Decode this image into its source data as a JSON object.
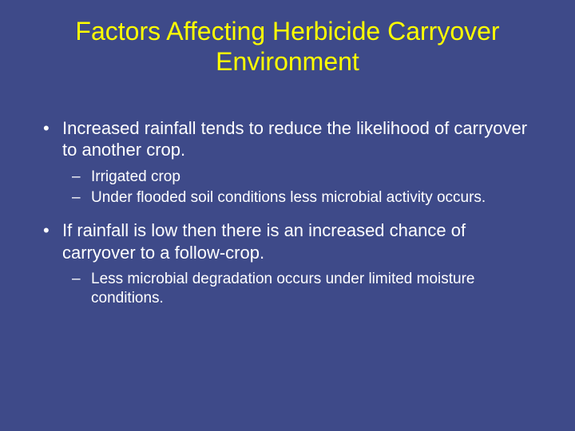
{
  "colors": {
    "background": "#3e4a89",
    "title": "#ffff00",
    "body_text": "#ffffff"
  },
  "typography": {
    "title_fontsize": 32,
    "bullet_l1_fontsize": 22,
    "bullet_l2_fontsize": 19,
    "font_family": "Arial"
  },
  "title_line1": "Factors Affecting Herbicide Carryover",
  "title_line2": "Environment",
  "bullets": {
    "b1": {
      "marker": "•",
      "text": "Increased rainfall tends to reduce the likelihood of carryover to another crop.",
      "subs": {
        "s1": {
          "marker": "–",
          "text": "Irrigated crop"
        },
        "s2": {
          "marker": "–",
          "text": "Under flooded soil conditions less microbial activity occurs."
        }
      }
    },
    "b2": {
      "marker": "•",
      "text": "If rainfall is low then there is an increased chance of carryover to a follow-crop.",
      "subs": {
        "s1": {
          "marker": "–",
          "text": "Less microbial degradation occurs under limited moisture conditions."
        }
      }
    }
  }
}
